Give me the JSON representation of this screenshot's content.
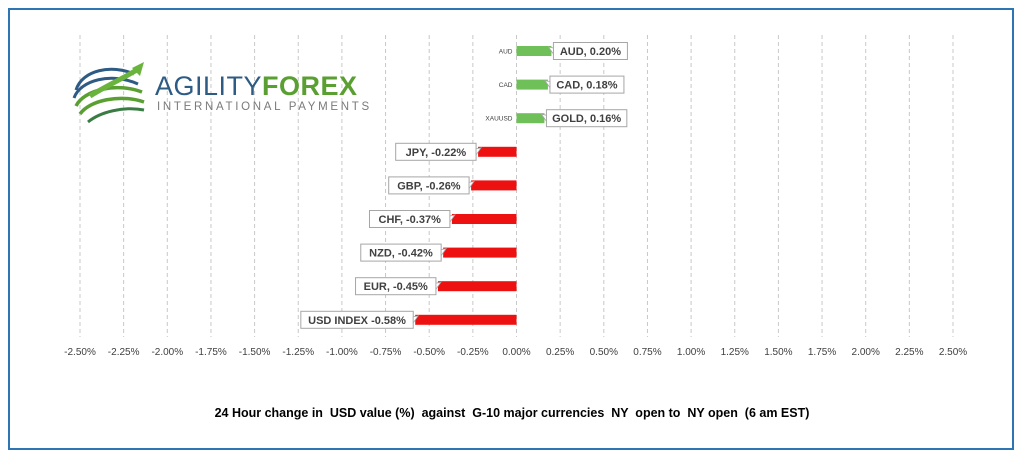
{
  "brand": {
    "word_part1": "AGILITY",
    "word_part2": "FOREX",
    "tagline": "INTERNATIONAL PAYMENTS",
    "colors": {
      "blue": "#2d5b84",
      "green": "#5a9f32",
      "grey": "#7a7a7a"
    }
  },
  "chart_data": {
    "type": "bar",
    "orientation": "horizontal",
    "title": "24 Hour change in  USD value (%)  against  G-10 major currencies  NY  open to  NY open  (6 am EST)",
    "categories": [
      "AUD",
      "CAD",
      "XAUUSD",
      "JPY",
      "GBP",
      "CHF",
      "NZD",
      "EUR",
      "USD INDEX"
    ],
    "category_axis_labels": [
      "AUD",
      "CAD",
      "XAUUSD",
      "",
      "",
      "",
      "",
      "",
      ""
    ],
    "values": [
      0.2,
      0.18,
      0.16,
      -0.22,
      -0.26,
      -0.37,
      -0.42,
      -0.45,
      -0.58
    ],
    "data_labels": [
      "AUD, 0.20%",
      "CAD, 0.18%",
      "GOLD, 0.16%",
      "JPY, -0.22%",
      "GBP, -0.26%",
      "CHF, -0.37%",
      "NZD, -0.42%",
      "EUR, -0.45%",
      "USD INDEX -0.58%"
    ],
    "xlim": [
      -2.5,
      2.5
    ],
    "xticks": [
      -2.5,
      -2.25,
      -2.0,
      -1.75,
      -1.5,
      -1.25,
      -1.0,
      -0.75,
      -0.5,
      -0.25,
      0.0,
      0.25,
      0.5,
      0.75,
      1.0,
      1.25,
      1.5,
      1.75,
      2.0,
      2.25,
      2.5
    ],
    "xtick_labels": [
      "-2.50%",
      "-2.25%",
      "-2.00%",
      "-1.75%",
      "-1.50%",
      "-1.25%",
      "-1.00%",
      "-0.75%",
      "-0.50%",
      "-0.25%",
      "0.00%",
      "0.25%",
      "0.50%",
      "0.75%",
      "1.00%",
      "1.25%",
      "1.50%",
      "1.75%",
      "2.00%",
      "2.25%",
      "2.50%"
    ],
    "grid": "vertical-dashed",
    "colors": {
      "positive": "#70c05a",
      "negative": "#ee1111",
      "grid": "#c8c8c8",
      "label_border": "#a6a6a6",
      "frame": "#2e75b6"
    }
  }
}
